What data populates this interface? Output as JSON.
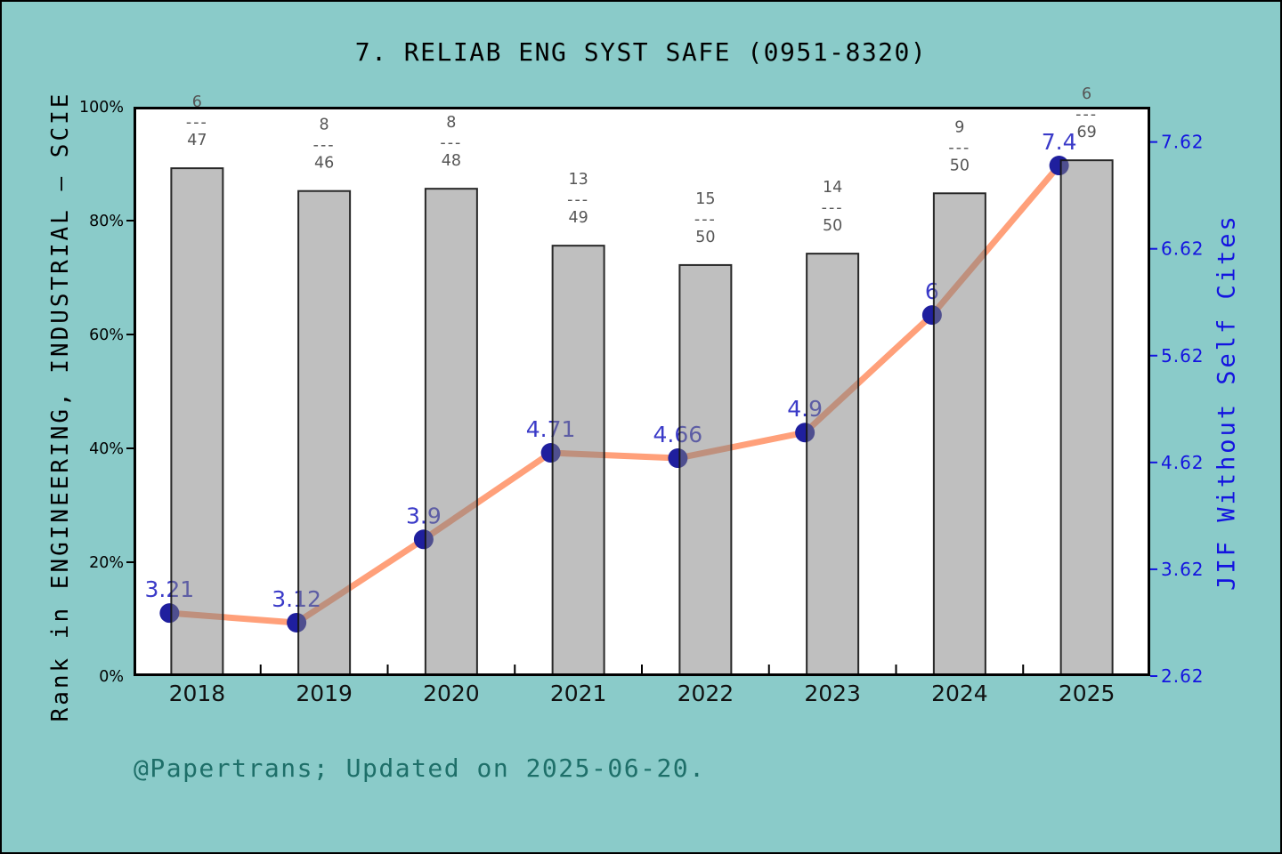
{
  "window": {
    "title": "7. RELIAB ENG SYST SAFE (0951-8320)"
  },
  "axes": {
    "left_label": "Rank in ENGINEERING, INDUSTRIAL — SCIE",
    "right_label": "JIF Without Self Cites"
  },
  "footer": {
    "credit": "@Papertrans; Updated on 2025-06-20."
  },
  "chart_data": {
    "type": "bar+line",
    "title": "7. RELIAB ENG SYST SAFE (0951-8320)",
    "categories": [
      "2018",
      "2019",
      "2020",
      "2021",
      "2022",
      "2023",
      "2024",
      "2025"
    ],
    "series": [
      {
        "name": "Rank in ENGINEERING, INDUSTRIAL — SCIE",
        "type": "bar",
        "axis": "left",
        "unit": "%",
        "values_pct": [
          89.2,
          85.2,
          85.6,
          75.6,
          72.2,
          74.2,
          84.8,
          90.6
        ],
        "rank_fractions": [
          {
            "num": "6",
            "den": "47"
          },
          {
            "num": "8",
            "den": "46"
          },
          {
            "num": "8",
            "den": "48"
          },
          {
            "num": "13",
            "den": "49"
          },
          {
            "num": "15",
            "den": "50"
          },
          {
            "num": "14",
            "den": "50"
          },
          {
            "num": "9",
            "den": "50"
          },
          {
            "num": "6",
            "den": "69"
          }
        ]
      },
      {
        "name": "JIF Without Self Cites",
        "type": "line",
        "axis": "right",
        "values": [
          3.21,
          3.12,
          3.9,
          4.71,
          4.66,
          4.9,
          6,
          7.4
        ],
        "point_labels": [
          "3.21",
          "3.12",
          "3.9",
          "4.71",
          "4.66",
          "4.9",
          "6",
          "7.4"
        ]
      }
    ],
    "left_axis": {
      "min": 0,
      "max": 100,
      "tick_values": [
        0,
        20,
        40,
        60,
        80,
        100
      ],
      "tick_labels": [
        "0%",
        "20%",
        "40%",
        "60%",
        "80%",
        "100%"
      ]
    },
    "right_axis": {
      "min": 2.62,
      "max": 7.95,
      "tick_values": [
        2.62,
        3.62,
        4.62,
        5.62,
        6.62,
        7.62
      ],
      "tick_labels": [
        "2.62",
        "3.62",
        "4.62",
        "5.62",
        "6.62",
        "7.62"
      ]
    },
    "grid": false,
    "legend": "none"
  },
  "colors": {
    "background": "#8ACBC9",
    "plot_background": "#FFFFFF",
    "plot_border": "#000000",
    "bar_fill": "#7F7F7F",
    "bar_stroke": "#141414",
    "line": "#FFA07A",
    "marker": "#1F1F9E",
    "value_label": "#3A3AC8",
    "fraction_label": "#565656",
    "left_axis_text": "#000000",
    "x_axis_text": "#111111",
    "right_axis_text": "#1414E0",
    "title_text": "#000000",
    "footer_text": "#1E6F69"
  }
}
